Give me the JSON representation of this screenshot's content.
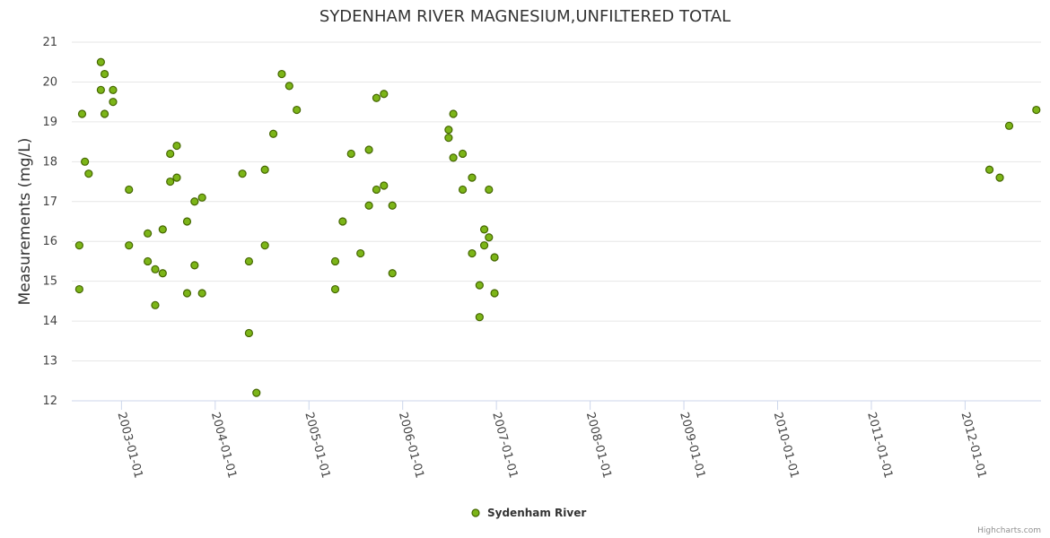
{
  "chart_data": {
    "type": "scatter",
    "title": "SYDENHAM RIVER MAGNESIUM,UNFILTERED TOTAL",
    "ylabel": "Measurements (mg/L)",
    "xlabel": "",
    "ylim": [
      12,
      21
    ],
    "xlim": [
      2002.47,
      2012.81
    ],
    "y_ticks": [
      12,
      13,
      14,
      15,
      16,
      17,
      18,
      19,
      20,
      21
    ],
    "x_ticks": [
      {
        "value": 2003.0,
        "label": "2003-01-01"
      },
      {
        "value": 2004.0,
        "label": "2004-01-01"
      },
      {
        "value": 2005.0,
        "label": "2005-01-01"
      },
      {
        "value": 2006.0,
        "label": "2006-01-01"
      },
      {
        "value": 2007.0,
        "label": "2007-01-01"
      },
      {
        "value": 2008.0,
        "label": "2008-01-01"
      },
      {
        "value": 2009.0,
        "label": "2009-01-01"
      },
      {
        "value": 2010.0,
        "label": "2010-01-01"
      },
      {
        "value": 2011.0,
        "label": "2011-01-01"
      },
      {
        "value": 2012.0,
        "label": "2012-01-01"
      }
    ],
    "legend": "bottom-center",
    "credits": "Highcharts.com",
    "series": [
      {
        "name": "Sydenham River",
        "color": "#7cb518",
        "x": [
          2002.55,
          2002.55,
          2002.58,
          2002.61,
          2002.65,
          2002.78,
          2002.78,
          2002.82,
          2002.82,
          2002.91,
          2002.91,
          2003.08,
          2003.08,
          2003.28,
          2003.28,
          2003.36,
          2003.36,
          2003.44,
          2003.44,
          2003.52,
          2003.52,
          2003.59,
          2003.59,
          2003.7,
          2003.7,
          2003.78,
          2003.78,
          2003.86,
          2003.86,
          2004.29,
          2004.36,
          2004.36,
          2004.44,
          2004.53,
          2004.53,
          2004.62,
          2004.71,
          2004.79,
          2004.87,
          2005.28,
          2005.28,
          2005.36,
          2005.45,
          2005.55,
          2005.64,
          2005.64,
          2005.72,
          2005.72,
          2005.8,
          2005.8,
          2005.89,
          2005.89,
          2006.49,
          2006.49,
          2006.54,
          2006.54,
          2006.64,
          2006.64,
          2006.74,
          2006.74,
          2006.82,
          2006.82,
          2006.87,
          2006.87,
          2006.92,
          2006.92,
          2006.98,
          2006.98,
          2012.26,
          2012.37,
          2012.47,
          2012.76
        ],
        "y": [
          15.9,
          14.8,
          19.2,
          18.0,
          17.7,
          20.5,
          19.8,
          20.2,
          19.2,
          19.8,
          19.5,
          17.3,
          15.9,
          16.2,
          15.5,
          15.3,
          14.4,
          16.3,
          15.2,
          18.2,
          17.5,
          18.4,
          17.6,
          16.5,
          14.7,
          17.0,
          15.4,
          17.1,
          14.7,
          17.7,
          15.5,
          13.7,
          12.2,
          17.8,
          15.9,
          18.7,
          20.2,
          19.9,
          19.3,
          15.5,
          14.8,
          16.5,
          18.2,
          15.7,
          18.3,
          16.9,
          19.6,
          17.3,
          19.7,
          17.4,
          16.9,
          15.2,
          18.8,
          18.6,
          19.2,
          18.1,
          18.2,
          17.3,
          17.6,
          15.7,
          14.9,
          14.1,
          16.3,
          15.9,
          16.1,
          17.3,
          15.6,
          14.7,
          17.8,
          17.6,
          18.9,
          19.3
        ]
      }
    ]
  }
}
